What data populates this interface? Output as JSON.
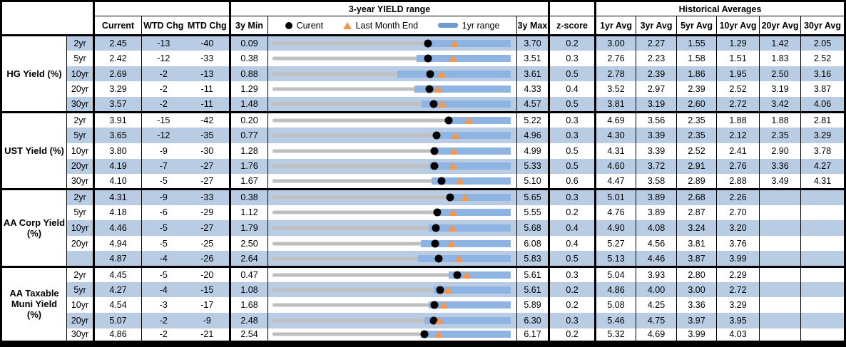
{
  "header": {
    "range_title": "3-year YIELD range",
    "hist_title": "Historical Averages",
    "col_current": "Current",
    "col_wtd": "WTD Chg",
    "col_mtd": "MTD Chg",
    "col_min": "3y Min",
    "col_max": "3y Max",
    "col_z": "z-score",
    "avg_cols": [
      "1yr Avg",
      "3yr Avg",
      "5yr Avg",
      "10yr Avg",
      "20yr Avg",
      "30yr Avg"
    ],
    "legend": {
      "current": "Curent",
      "last_month": "Last Month End",
      "range": "1yr range"
    }
  },
  "colors": {
    "stripe": "#B8CCE4",
    "range_bar_blue": "#8EB4E3",
    "legend_dash_blue": "#6F9BD2",
    "last_month_orange": "#F79646",
    "track_gray": "#BFBFBF"
  },
  "chart_data": {
    "type": "bullet-range-table",
    "note": "Each row: gray track spans 3y Min to 3y Max; blue bar = 1yr range (estimated low, high); black dot = Current; orange triangle = Last Month End (estimated from chart).",
    "groups": [
      {
        "label": "HG Yield (%)",
        "label_lines": [
          "HG Yield (%)"
        ],
        "rows": [
          {
            "tenor": "2yr",
            "current": "2.45",
            "wtd": "-13",
            "mtd": "-40",
            "min": "0.09",
            "max": "3.70",
            "z": "0.2",
            "avgs": [
              "3.00",
              "2.27",
              "1.55",
              "1.29",
              "1.42",
              "2.05"
            ],
            "bar": [
              2.39,
              3.7
            ],
            "lme": 2.85
          },
          {
            "tenor": "5yr",
            "current": "2.42",
            "wtd": "-12",
            "mtd": "-33",
            "min": "0.38",
            "max": "3.51",
            "z": "0.3",
            "avgs": [
              "2.76",
              "2.23",
              "1.58",
              "1.51",
              "1.83",
              "2.52"
            ],
            "bar": [
              2.27,
              3.51
            ],
            "lme": 2.75
          },
          {
            "tenor": "10yr",
            "current": "2.69",
            "wtd": "-2",
            "mtd": "-13",
            "min": "0.88",
            "max": "3.61",
            "z": "0.5",
            "avgs": [
              "2.78",
              "2.39",
              "1.86",
              "1.95",
              "2.50",
              "3.16"
            ],
            "bar": [
              2.31,
              3.61
            ],
            "lme": 2.82
          },
          {
            "tenor": "20yr",
            "current": "3.29",
            "wtd": "-2",
            "mtd": "-11",
            "min": "1.29",
            "max": "4.33",
            "z": "0.4",
            "avgs": [
              "3.52",
              "2.97",
              "2.39",
              "2.52",
              "3.19",
              "3.87"
            ],
            "bar": [
              3.1,
              4.33
            ],
            "lme": 3.4
          },
          {
            "tenor": "30yr",
            "current": "3.57",
            "wtd": "-2",
            "mtd": "-11",
            "min": "1.48",
            "max": "4.57",
            "z": "0.5",
            "avgs": [
              "3.81",
              "3.19",
              "2.60",
              "2.72",
              "3.42",
              "4.06"
            ],
            "bar": [
              3.41,
              4.57
            ],
            "lme": 3.68
          }
        ]
      },
      {
        "label": "UST Yield (%)",
        "label_lines": [
          "UST Yield (%)"
        ],
        "rows": [
          {
            "tenor": "2yr",
            "current": "3.91",
            "wtd": "-15",
            "mtd": "-42",
            "min": "0.20",
            "max": "5.22",
            "z": "0.3",
            "avgs": [
              "4.69",
              "3.56",
              "2.35",
              "1.88",
              "1.88",
              "2.81"
            ],
            "bar": [
              3.85,
              5.22
            ],
            "lme": 4.33
          },
          {
            "tenor": "5yr",
            "current": "3.65",
            "wtd": "-12",
            "mtd": "-35",
            "min": "0.77",
            "max": "4.96",
            "z": "0.3",
            "avgs": [
              "4.30",
              "3.39",
              "2.35",
              "2.12",
              "2.35",
              "3.29"
            ],
            "bar": [
              3.64,
              4.96
            ],
            "lme": 4.0
          },
          {
            "tenor": "10yr",
            "current": "3.80",
            "wtd": "-9",
            "mtd": "-30",
            "min": "1.28",
            "max": "4.99",
            "z": "0.5",
            "avgs": [
              "4.31",
              "3.39",
              "2.52",
              "2.41",
              "2.90",
              "3.78"
            ],
            "bar": [
              3.78,
              4.99
            ],
            "lme": 4.1
          },
          {
            "tenor": "20yr",
            "current": "4.19",
            "wtd": "-7",
            "mtd": "-27",
            "min": "1.76",
            "max": "5.33",
            "z": "0.5",
            "avgs": [
              "4.60",
              "3.72",
              "2.91",
              "2.76",
              "3.36",
              "4.27"
            ],
            "bar": [
              4.11,
              5.33
            ],
            "lme": 4.46
          },
          {
            "tenor": "30yr",
            "current": "4.10",
            "wtd": "-5",
            "mtd": "-27",
            "min": "1.67",
            "max": "5.10",
            "z": "0.6",
            "avgs": [
              "4.47",
              "3.58",
              "2.89",
              "2.88",
              "3.49",
              "4.31"
            ],
            "bar": [
              3.96,
              5.1
            ],
            "lme": 4.37
          }
        ]
      },
      {
        "label": "AA Corp Yield (%)",
        "label_lines": [
          "AA Corp Yield",
          "(%)"
        ],
        "rows": [
          {
            "tenor": "2yr",
            "current": "4.31",
            "wtd": "-9",
            "mtd": "-33",
            "min": "0.38",
            "max": "5.65",
            "z": "0.3",
            "avgs": [
              "5.01",
              "3.89",
              "2.68",
              "2.26",
              "",
              ""
            ],
            "bar": [
              4.27,
              5.65
            ],
            "lme": 4.64
          },
          {
            "tenor": "5yr",
            "current": "4.18",
            "wtd": "-6",
            "mtd": "-29",
            "min": "1.12",
            "max": "5.55",
            "z": "0.2",
            "avgs": [
              "4.76",
              "3.89",
              "2.87",
              "2.70",
              "",
              ""
            ],
            "bar": [
              4.15,
              5.55
            ],
            "lme": 4.47
          },
          {
            "tenor": "10yr",
            "current": "4.46",
            "wtd": "-5",
            "mtd": "-27",
            "min": "1.79",
            "max": "5.68",
            "z": "0.4",
            "avgs": [
              "4.90",
              "4.08",
              "3.24",
              "3.20",
              "",
              ""
            ],
            "bar": [
              4.34,
              5.68
            ],
            "lme": 4.73
          },
          {
            "tenor": "20yr",
            "current": "4.94",
            "wtd": "-5",
            "mtd": "-25",
            "min": "2.50",
            "max": "6.08",
            "z": "0.4",
            "avgs": [
              "5.27",
              "4.56",
              "3.81",
              "3.76",
              "",
              ""
            ],
            "bar": [
              4.73,
              6.08
            ],
            "lme": 5.19
          },
          {
            "tenor": "",
            "current": "4.87",
            "wtd": "-4",
            "mtd": "-26",
            "min": "2.64",
            "max": "5.83",
            "z": "0.5",
            "avgs": [
              "5.13",
              "4.46",
              "3.87",
              "3.99",
              "",
              ""
            ],
            "bar": [
              4.59,
              5.83
            ],
            "lme": 5.13
          }
        ]
      },
      {
        "label": "AA Taxable Muni Yield (%)",
        "label_lines": [
          "AA Taxable",
          "Muni Yield",
          "(%)"
        ],
        "rows": [
          {
            "tenor": "2yr",
            "current": "4.45",
            "wtd": "-5",
            "mtd": "-20",
            "min": "0.47",
            "max": "5.61",
            "z": "0.3",
            "avgs": [
              "5.04",
              "3.93",
              "2.80",
              "2.29",
              "",
              ""
            ],
            "bar": [
              4.27,
              5.61
            ],
            "lme": 4.65
          },
          {
            "tenor": "5yr",
            "current": "4.27",
            "wtd": "-4",
            "mtd": "-15",
            "min": "1.08",
            "max": "5.61",
            "z": "0.2",
            "avgs": [
              "4.86",
              "4.00",
              "3.00",
              "2.72",
              "",
              ""
            ],
            "bar": [
              4.14,
              5.61
            ],
            "lme": 4.42
          },
          {
            "tenor": "10yr",
            "current": "4.54",
            "wtd": "-3",
            "mtd": "-17",
            "min": "1.68",
            "max": "5.89",
            "z": "0.2",
            "avgs": [
              "5.08",
              "4.25",
              "3.36",
              "3.29",
              "",
              ""
            ],
            "bar": [
              4.44,
              5.89
            ],
            "lme": 4.71
          },
          {
            "tenor": "20yr",
            "current": "5.07",
            "wtd": "-2",
            "mtd": "-9",
            "min": "2.48",
            "max": "6.30",
            "z": "0.3",
            "avgs": [
              "5.46",
              "4.75",
              "3.97",
              "3.95",
              "",
              ""
            ],
            "bar": [
              4.92,
              6.3
            ],
            "lme": 5.16
          },
          {
            "tenor": "30yr",
            "current": "4.86",
            "wtd": "-2",
            "mtd": "-21",
            "min": "2.54",
            "max": "6.17",
            "z": "0.2",
            "avgs": [
              "5.32",
              "4.69",
              "3.99",
              "4.03",
              "",
              ""
            ],
            "bar": [
              4.8,
              6.17
            ],
            "lme": 5.07
          }
        ]
      }
    ]
  }
}
